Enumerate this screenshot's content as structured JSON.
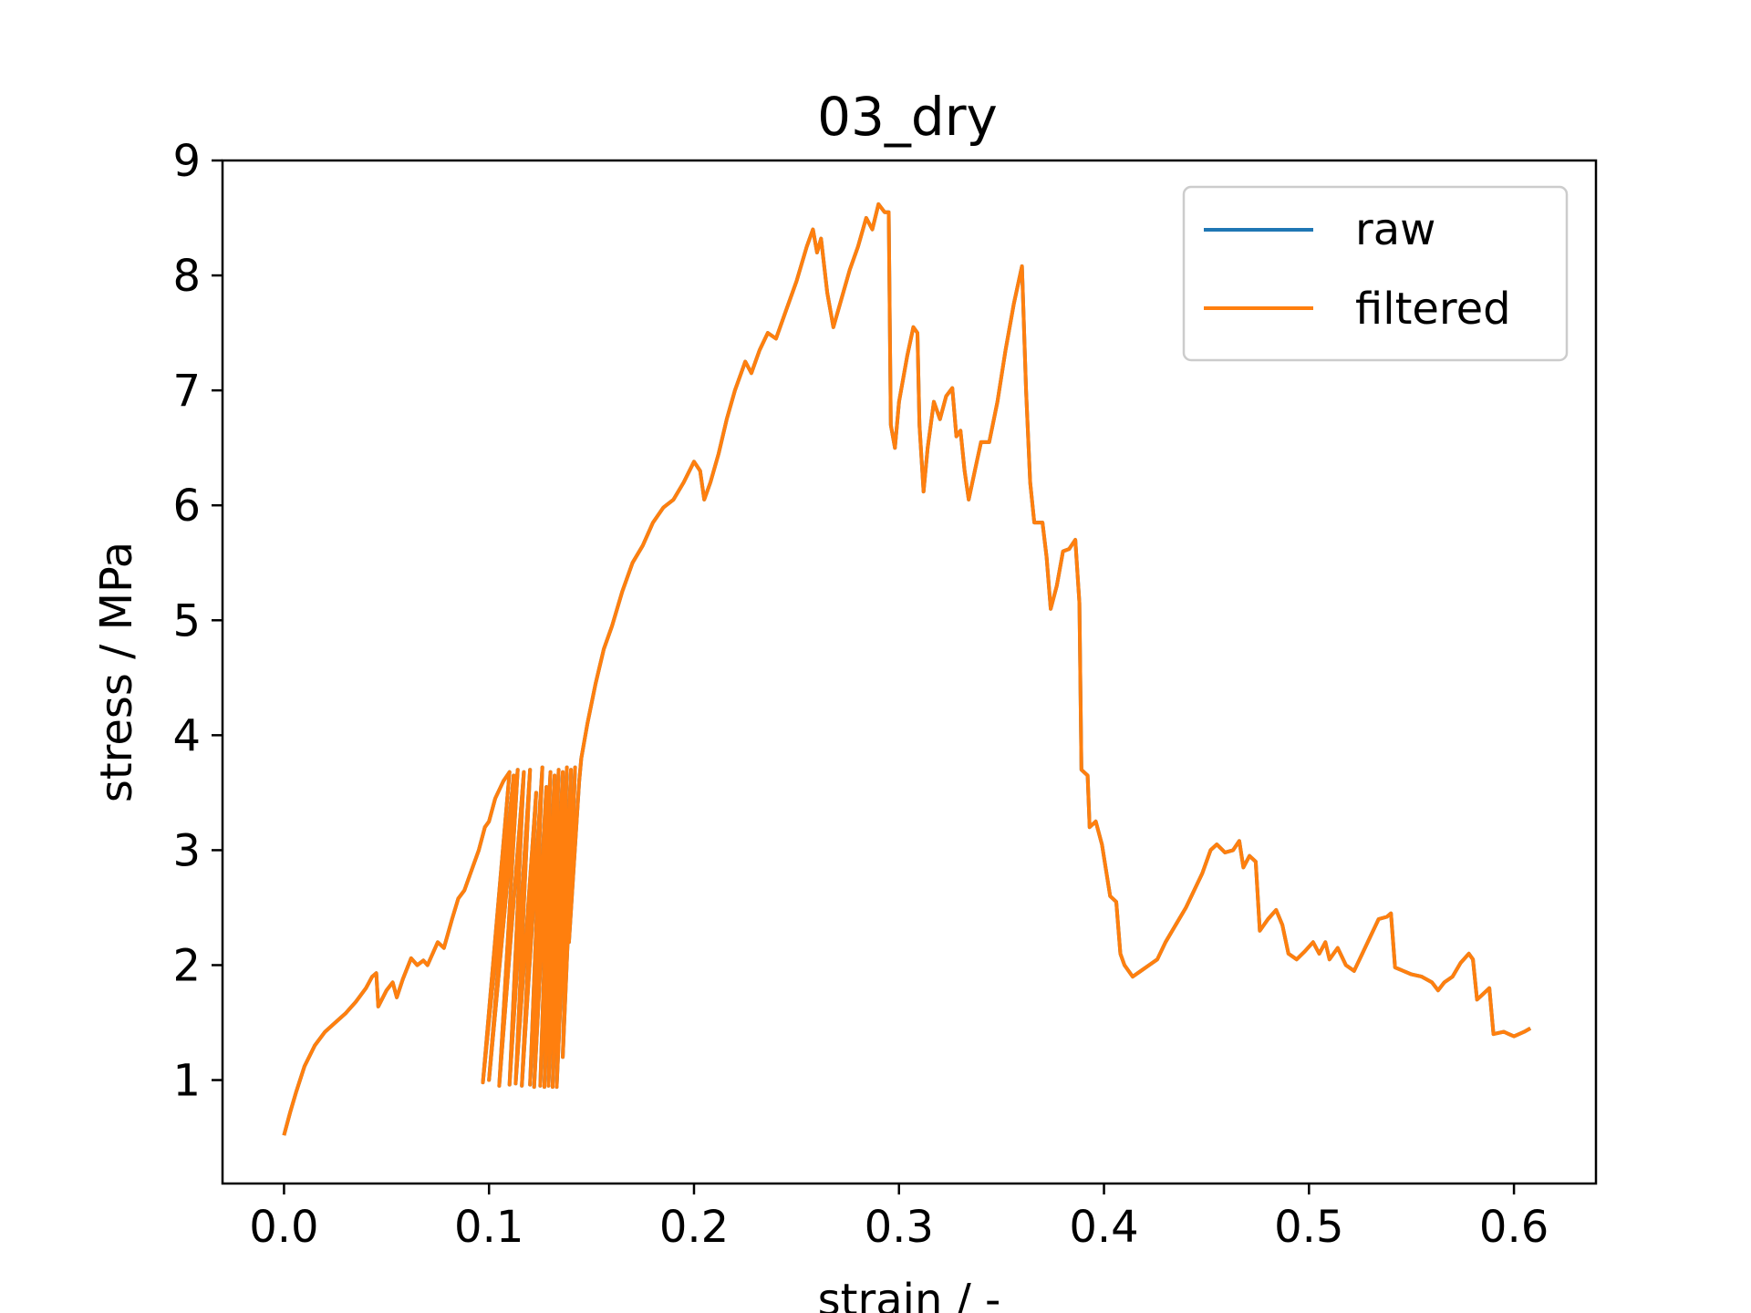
{
  "chart_data": {
    "type": "line",
    "title": "03_dry",
    "xlabel": "strain / -",
    "ylabel": "stress / MPa",
    "xlim": [
      -0.03,
      0.64
    ],
    "ylim": [
      0.1,
      9.0
    ],
    "xticks": [
      "0.0",
      "0.1",
      "0.2",
      "0.3",
      "0.4",
      "0.5",
      "0.6"
    ],
    "yticks": [
      "1",
      "2",
      "3",
      "4",
      "5",
      "6",
      "7",
      "8",
      "9"
    ],
    "grid": false,
    "legend_position": "top-right",
    "series": [
      {
        "name": "raw",
        "color": "#1f77b4",
        "points": [
          [
            0.0,
            0.52
          ],
          [
            0.003,
            0.72
          ],
          [
            0.006,
            0.9
          ],
          [
            0.01,
            1.12
          ],
          [
            0.015,
            1.3
          ],
          [
            0.02,
            1.42
          ],
          [
            0.025,
            1.5
          ],
          [
            0.03,
            1.58
          ],
          [
            0.035,
            1.68
          ],
          [
            0.04,
            1.8
          ],
          [
            0.043,
            1.9
          ],
          [
            0.045,
            1.93
          ],
          [
            0.046,
            1.64
          ],
          [
            0.05,
            1.78
          ],
          [
            0.053,
            1.85
          ],
          [
            0.055,
            1.72
          ],
          [
            0.058,
            1.88
          ],
          [
            0.062,
            2.06
          ],
          [
            0.065,
            2.0
          ],
          [
            0.068,
            2.04
          ],
          [
            0.07,
            2.0
          ],
          [
            0.075,
            2.2
          ],
          [
            0.078,
            2.15
          ],
          [
            0.082,
            2.4
          ],
          [
            0.085,
            2.58
          ],
          [
            0.088,
            2.65
          ],
          [
            0.092,
            2.85
          ],
          [
            0.095,
            3.0
          ],
          [
            0.098,
            3.2
          ],
          [
            0.1,
            3.25
          ],
          [
            0.103,
            3.45
          ],
          [
            0.107,
            3.6
          ],
          [
            0.11,
            3.68
          ],
          [
            0.097,
            0.98
          ],
          [
            0.112,
            3.65
          ],
          [
            0.1,
            1.0
          ],
          [
            0.114,
            3.7
          ],
          [
            0.105,
            0.95
          ],
          [
            0.117,
            3.68
          ],
          [
            0.11,
            0.96
          ],
          [
            0.12,
            3.7
          ],
          [
            0.113,
            0.97
          ],
          [
            0.123,
            3.5
          ],
          [
            0.116,
            0.95
          ],
          [
            0.126,
            3.72
          ],
          [
            0.12,
            0.96
          ],
          [
            0.128,
            3.55
          ],
          [
            0.122,
            0.94
          ],
          [
            0.13,
            3.68
          ],
          [
            0.125,
            0.95
          ],
          [
            0.132,
            3.65
          ],
          [
            0.127,
            0.94
          ],
          [
            0.134,
            3.7
          ],
          [
            0.129,
            0.95
          ],
          [
            0.136,
            3.68
          ],
          [
            0.131,
            0.94
          ],
          [
            0.138,
            3.72
          ],
          [
            0.133,
            0.94
          ],
          [
            0.14,
            3.7
          ],
          [
            0.136,
            1.2
          ],
          [
            0.142,
            3.72
          ],
          [
            0.139,
            2.2
          ],
          [
            0.144,
            3.6
          ],
          [
            0.145,
            3.8
          ],
          [
            0.148,
            4.1
          ],
          [
            0.152,
            4.45
          ],
          [
            0.156,
            4.75
          ],
          [
            0.16,
            4.95
          ],
          [
            0.165,
            5.25
          ],
          [
            0.17,
            5.5
          ],
          [
            0.175,
            5.65
          ],
          [
            0.18,
            5.85
          ],
          [
            0.185,
            5.98
          ],
          [
            0.19,
            6.05
          ],
          [
            0.195,
            6.2
          ],
          [
            0.2,
            6.38
          ],
          [
            0.203,
            6.3
          ],
          [
            0.205,
            6.05
          ],
          [
            0.208,
            6.2
          ],
          [
            0.212,
            6.45
          ],
          [
            0.216,
            6.75
          ],
          [
            0.22,
            7.0
          ],
          [
            0.225,
            7.25
          ],
          [
            0.228,
            7.15
          ],
          [
            0.232,
            7.35
          ],
          [
            0.236,
            7.5
          ],
          [
            0.24,
            7.45
          ],
          [
            0.245,
            7.7
          ],
          [
            0.25,
            7.95
          ],
          [
            0.255,
            8.25
          ],
          [
            0.258,
            8.4
          ],
          [
            0.26,
            8.2
          ],
          [
            0.262,
            8.32
          ],
          [
            0.265,
            7.85
          ],
          [
            0.268,
            7.55
          ],
          [
            0.272,
            7.8
          ],
          [
            0.276,
            8.05
          ],
          [
            0.28,
            8.25
          ],
          [
            0.284,
            8.5
          ],
          [
            0.287,
            8.4
          ],
          [
            0.29,
            8.62
          ],
          [
            0.293,
            8.55
          ],
          [
            0.295,
            8.55
          ],
          [
            0.296,
            6.7
          ],
          [
            0.298,
            6.5
          ],
          [
            0.3,
            6.9
          ],
          [
            0.304,
            7.3
          ],
          [
            0.307,
            7.55
          ],
          [
            0.309,
            7.5
          ],
          [
            0.31,
            6.7
          ],
          [
            0.312,
            6.12
          ],
          [
            0.314,
            6.5
          ],
          [
            0.317,
            6.9
          ],
          [
            0.32,
            6.75
          ],
          [
            0.323,
            6.95
          ],
          [
            0.326,
            7.02
          ],
          [
            0.328,
            6.6
          ],
          [
            0.33,
            6.65
          ],
          [
            0.332,
            6.3
          ],
          [
            0.334,
            6.05
          ],
          [
            0.337,
            6.3
          ],
          [
            0.34,
            6.55
          ],
          [
            0.344,
            6.55
          ],
          [
            0.348,
            6.9
          ],
          [
            0.352,
            7.35
          ],
          [
            0.356,
            7.75
          ],
          [
            0.36,
            8.08
          ],
          [
            0.362,
            7.0
          ],
          [
            0.364,
            6.2
          ],
          [
            0.366,
            5.85
          ],
          [
            0.37,
            5.85
          ],
          [
            0.372,
            5.55
          ],
          [
            0.374,
            5.1
          ],
          [
            0.377,
            5.3
          ],
          [
            0.38,
            5.6
          ],
          [
            0.383,
            5.62
          ],
          [
            0.386,
            5.7
          ],
          [
            0.388,
            5.15
          ],
          [
            0.389,
            3.7
          ],
          [
            0.392,
            3.65
          ],
          [
            0.393,
            3.2
          ],
          [
            0.396,
            3.25
          ],
          [
            0.399,
            3.05
          ],
          [
            0.403,
            2.6
          ],
          [
            0.406,
            2.55
          ],
          [
            0.408,
            2.1
          ],
          [
            0.41,
            2.0
          ],
          [
            0.414,
            1.9
          ],
          [
            0.418,
            1.95
          ],
          [
            0.422,
            2.0
          ],
          [
            0.426,
            2.05
          ],
          [
            0.43,
            2.2
          ],
          [
            0.435,
            2.35
          ],
          [
            0.44,
            2.5
          ],
          [
            0.444,
            2.65
          ],
          [
            0.448,
            2.8
          ],
          [
            0.452,
            3.0
          ],
          [
            0.455,
            3.05
          ],
          [
            0.459,
            2.98
          ],
          [
            0.463,
            3.0
          ],
          [
            0.466,
            3.08
          ],
          [
            0.468,
            2.85
          ],
          [
            0.471,
            2.95
          ],
          [
            0.474,
            2.9
          ],
          [
            0.476,
            2.3
          ],
          [
            0.48,
            2.4
          ],
          [
            0.484,
            2.48
          ],
          [
            0.487,
            2.35
          ],
          [
            0.49,
            2.1
          ],
          [
            0.494,
            2.05
          ],
          [
            0.498,
            2.12
          ],
          [
            0.502,
            2.2
          ],
          [
            0.505,
            2.1
          ],
          [
            0.508,
            2.2
          ],
          [
            0.51,
            2.05
          ],
          [
            0.514,
            2.15
          ],
          [
            0.518,
            2.0
          ],
          [
            0.522,
            1.95
          ],
          [
            0.526,
            2.1
          ],
          [
            0.53,
            2.25
          ],
          [
            0.534,
            2.4
          ],
          [
            0.538,
            2.42
          ],
          [
            0.54,
            2.45
          ],
          [
            0.542,
            1.98
          ],
          [
            0.546,
            1.95
          ],
          [
            0.55,
            1.92
          ],
          [
            0.555,
            1.9
          ],
          [
            0.56,
            1.85
          ],
          [
            0.563,
            1.78
          ],
          [
            0.566,
            1.85
          ],
          [
            0.57,
            1.9
          ],
          [
            0.574,
            2.02
          ],
          [
            0.578,
            2.1
          ],
          [
            0.58,
            2.05
          ],
          [
            0.582,
            1.7
          ],
          [
            0.585,
            1.75
          ],
          [
            0.588,
            1.8
          ],
          [
            0.59,
            1.4
          ],
          [
            0.595,
            1.42
          ],
          [
            0.6,
            1.38
          ],
          [
            0.605,
            1.42
          ],
          [
            0.608,
            1.45
          ]
        ]
      },
      {
        "name": "filtered",
        "color": "#ff7f0e",
        "same_as": "raw"
      }
    ]
  }
}
